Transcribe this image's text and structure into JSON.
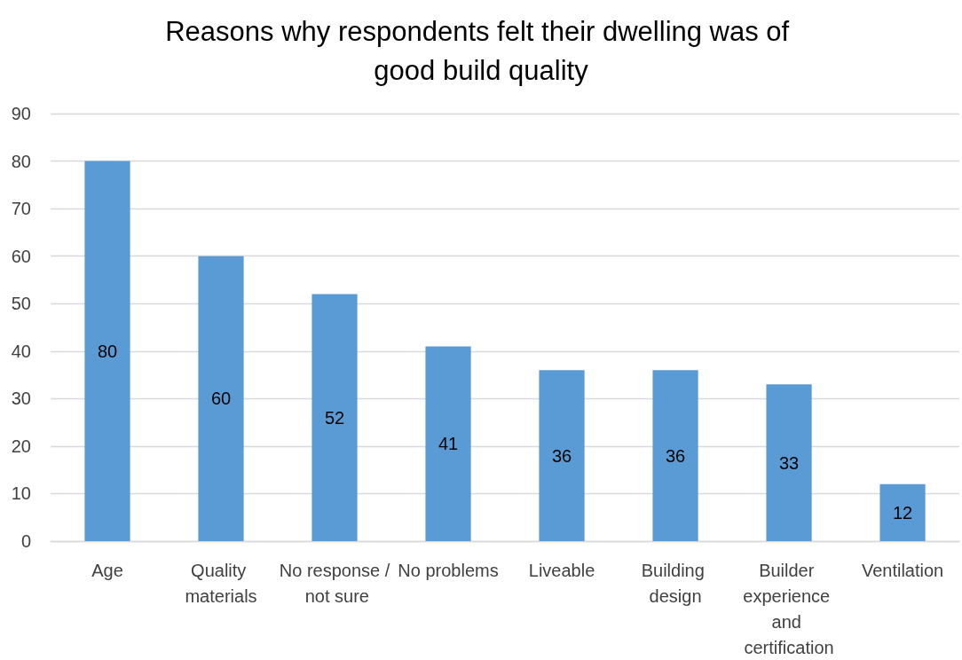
{
  "chart_data": {
    "type": "bar",
    "title": "Reasons why respondents felt their dwelling was of good build quality",
    "categories": [
      "Age",
      "Quality materials",
      "No response / not sure",
      "No problems",
      "Liveable",
      "Building design",
      "Builder experience and certification",
      "Ventilation"
    ],
    "values": [
      80,
      60,
      52,
      41,
      36,
      36,
      33,
      12
    ],
    "color": "#5b9bd5",
    "ylim": [
      0,
      90
    ],
    "yticks": [
      0,
      10,
      20,
      30,
      40,
      50,
      60,
      70,
      80,
      90
    ],
    "grid": "y",
    "data_labels": true
  }
}
